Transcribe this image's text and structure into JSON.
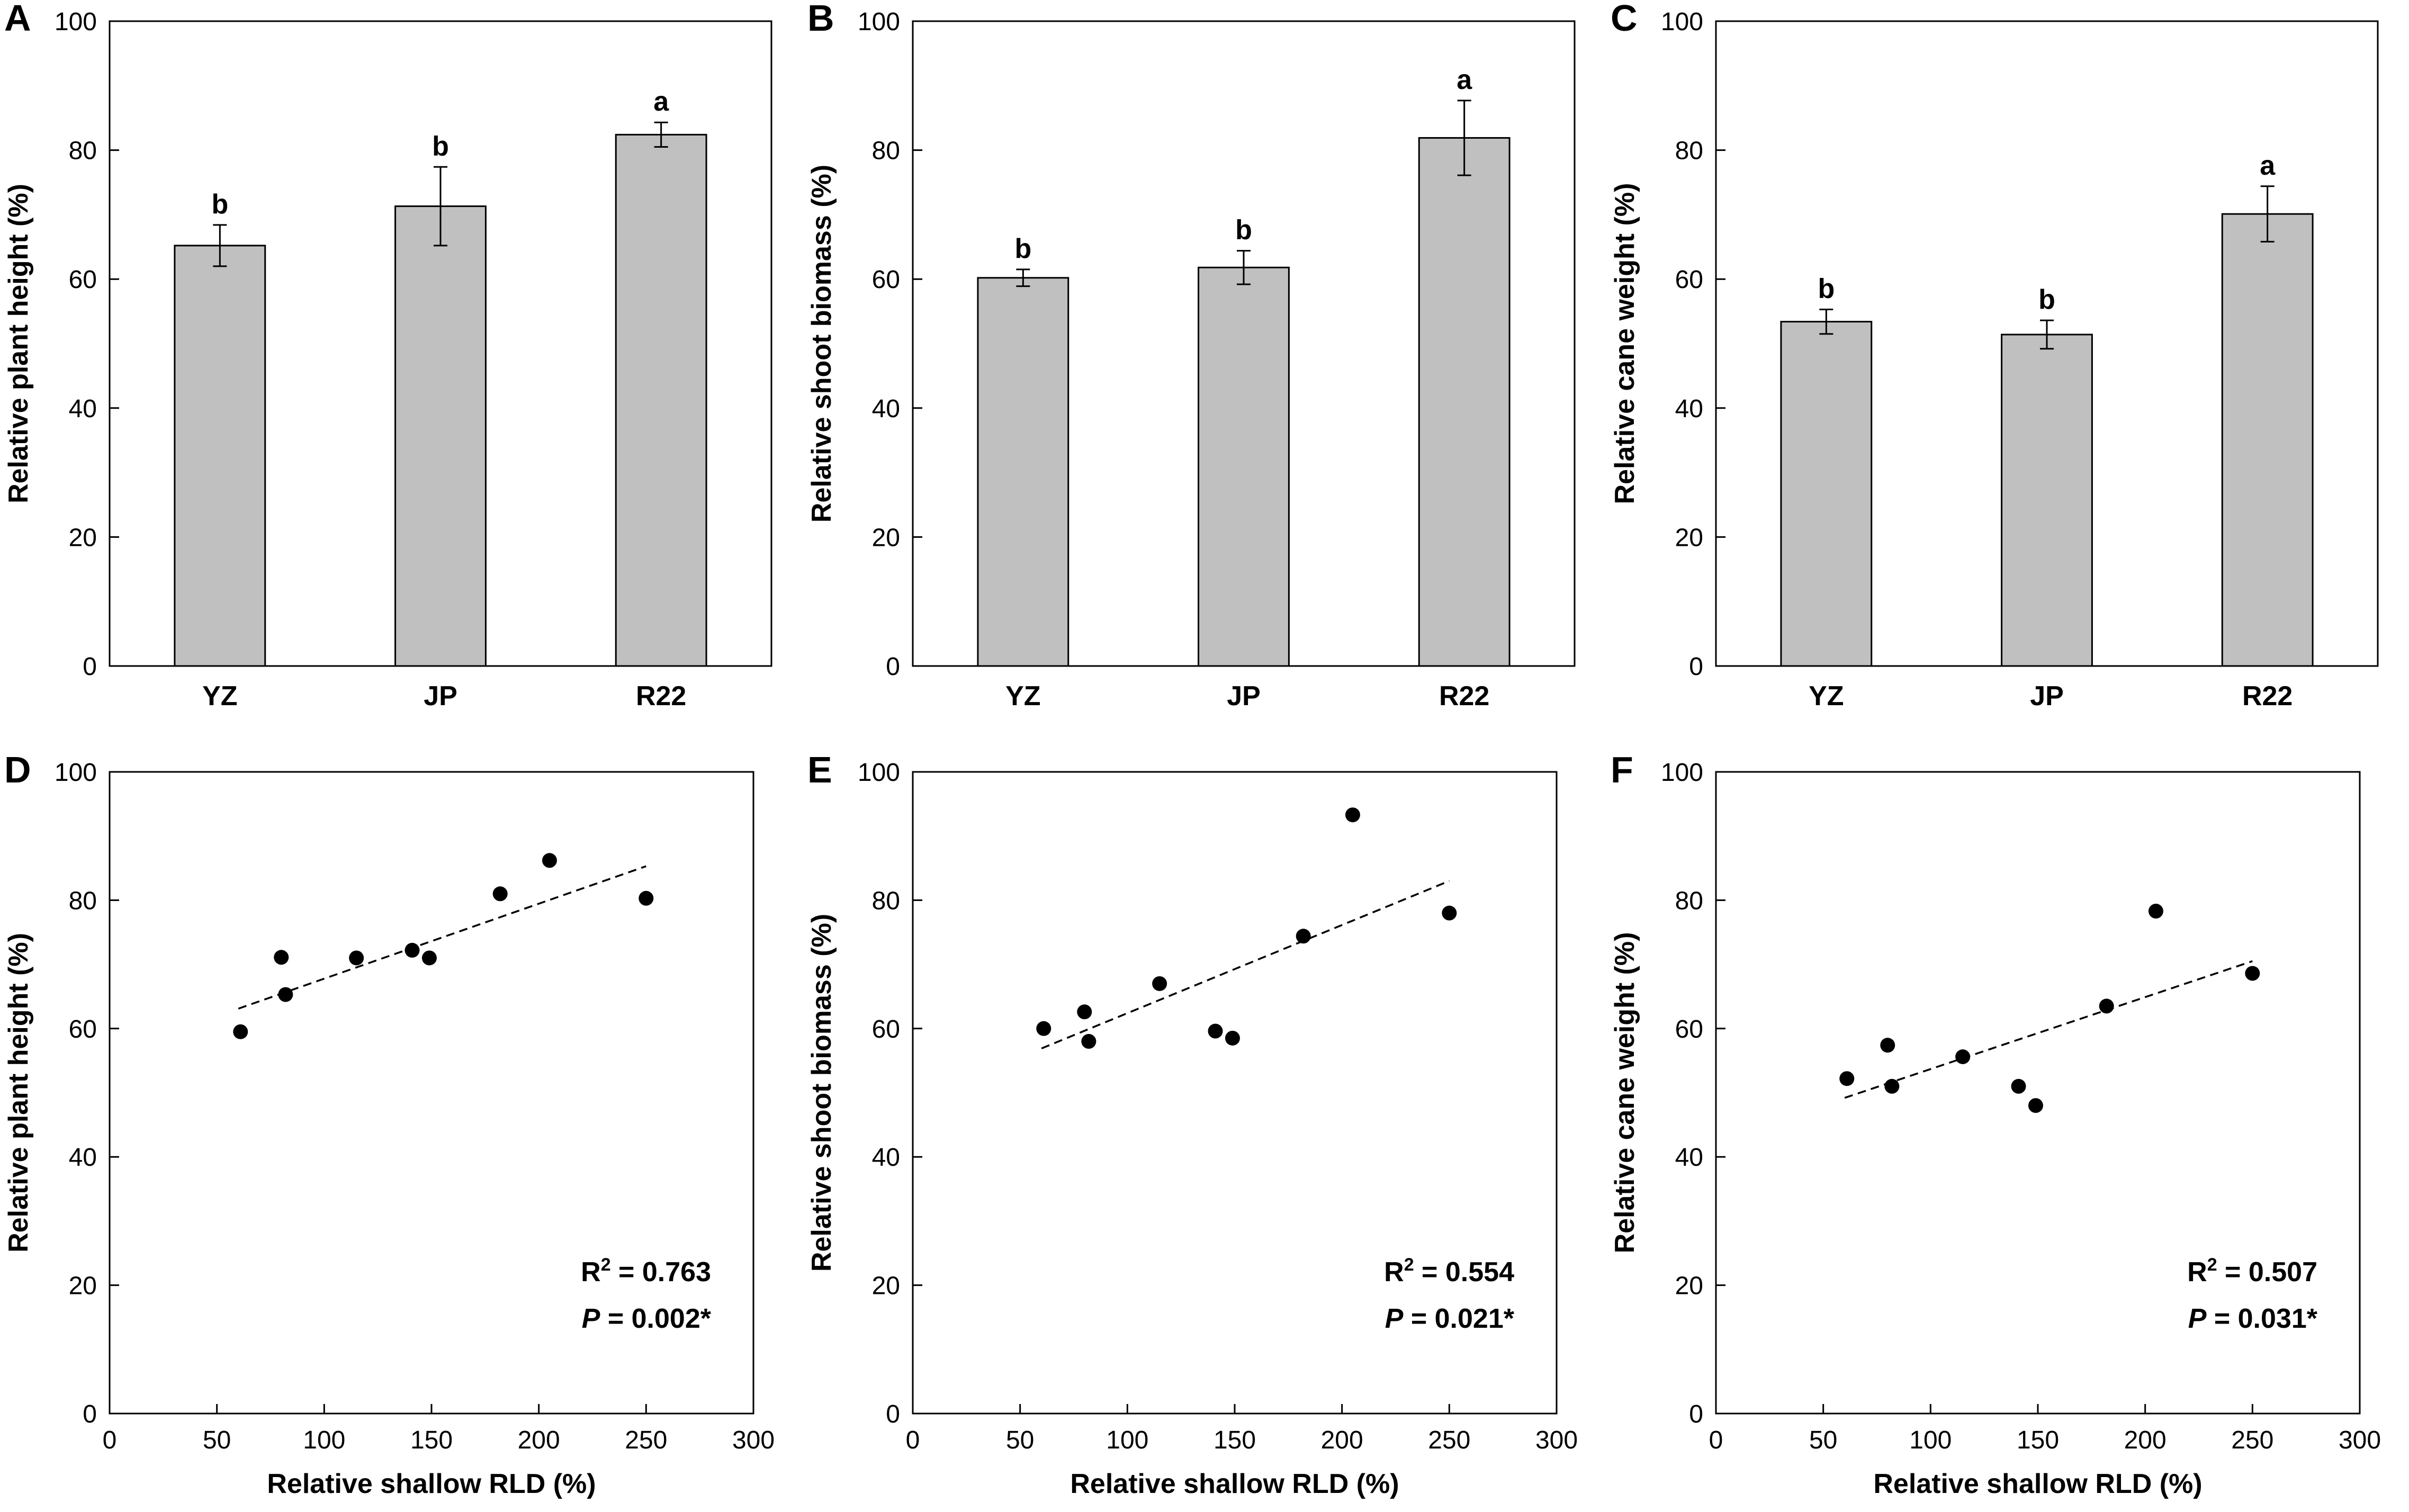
{
  "chart_data": [
    {
      "panel": "A",
      "type": "bar",
      "categories": [
        "YZ",
        "JP",
        "R22"
      ],
      "values": [
        65.2,
        71.3,
        82.4
      ],
      "errors": [
        3.2,
        6.1,
        1.9
      ],
      "significance": [
        "b",
        "b",
        "a"
      ],
      "xlabel": "",
      "ylabel": "Relative plant height (%)",
      "ylim": [
        0,
        100
      ],
      "yticks": [
        0,
        20,
        40,
        60,
        80,
        100
      ],
      "bar_color": "#c0c0c0"
    },
    {
      "panel": "B",
      "type": "bar",
      "categories": [
        "YZ",
        "JP",
        "R22"
      ],
      "values": [
        60.2,
        61.8,
        81.9
      ],
      "errors": [
        1.3,
        2.6,
        5.8
      ],
      "significance": [
        "b",
        "b",
        "a"
      ],
      "xlabel": "",
      "ylabel": "Relative shoot biomass (%)",
      "ylim": [
        0,
        100
      ],
      "yticks": [
        0,
        20,
        40,
        60,
        80,
        100
      ],
      "bar_color": "#c0c0c0"
    },
    {
      "panel": "C",
      "type": "bar",
      "categories": [
        "YZ",
        "JP",
        "R22"
      ],
      "values": [
        53.4,
        51.4,
        70.1
      ],
      "errors": [
        1.9,
        2.2,
        4.3
      ],
      "significance": [
        "b",
        "b",
        "a"
      ],
      "xlabel": "",
      "ylabel": "Relative cane weight (%)",
      "ylim": [
        0,
        100
      ],
      "yticks": [
        0,
        20,
        40,
        60,
        80,
        100
      ],
      "bar_color": "#c0c0c0"
    },
    {
      "panel": "D",
      "type": "scatter",
      "x": [
        61,
        80,
        82,
        115,
        141,
        149,
        182,
        205,
        250
      ],
      "y": [
        59.5,
        71.1,
        65.3,
        71.0,
        72.2,
        71.0,
        81.0,
        86.2,
        80.3
      ],
      "trendline": {
        "x": [
          60,
          250
        ],
        "y": [
          63.1,
          85.3
        ],
        "style": "dashed"
      },
      "r2_label": "R",
      "r2_sup": "2",
      "r2_value": " = 0.763",
      "p_label": "P",
      "p_value": " = 0.002*",
      "xlabel": "Relative shallow RLD (%)",
      "ylabel": "Relative plant height (%)",
      "xlim": [
        0,
        300
      ],
      "ylim": [
        0,
        100
      ],
      "xticks": [
        0,
        50,
        100,
        150,
        200,
        250,
        300
      ],
      "yticks": [
        0,
        20,
        40,
        60,
        80,
        100
      ]
    },
    {
      "panel": "E",
      "type": "scatter",
      "x": [
        61,
        80,
        82,
        115,
        141,
        149,
        182,
        205,
        250
      ],
      "y": [
        60.0,
        62.6,
        58.0,
        67.0,
        59.6,
        58.5,
        74.4,
        93.3,
        78.0
      ],
      "trendline": {
        "x": [
          60,
          250
        ],
        "y": [
          56.9,
          83.0
        ],
        "style": "dashed"
      },
      "r2_label": "R",
      "r2_sup": "2",
      "r2_value": " = 0.554",
      "p_label": "P",
      "p_value": " = 0.021*",
      "xlabel": "Relative shallow RLD (%)",
      "ylabel": "Relative shoot biomass (%)",
      "xlim": [
        0,
        300
      ],
      "ylim": [
        0,
        100
      ],
      "xticks": [
        0,
        50,
        100,
        150,
        200,
        250,
        300
      ],
      "yticks": [
        0,
        20,
        40,
        60,
        80,
        100
      ]
    },
    {
      "panel": "F",
      "type": "scatter",
      "x": [
        61,
        80,
        82,
        115,
        141,
        149,
        182,
        205,
        250
      ],
      "y": [
        52.2,
        57.4,
        51.0,
        55.6,
        51.0,
        48.0,
        63.5,
        78.3,
        68.6
      ],
      "trendline": {
        "x": [
          60,
          250
        ],
        "y": [
          49.2,
          70.5
        ],
        "style": "dashed"
      },
      "r2_label": "R",
      "r2_sup": "2",
      "r2_value": " = 0.507",
      "p_label": "P",
      "p_value": " = 0.031*",
      "xlabel": "Relative shallow RLD (%)",
      "ylabel": "Relative cane weight (%)",
      "xlim": [
        0,
        300
      ],
      "ylim": [
        0,
        100
      ],
      "xticks": [
        0,
        50,
        100,
        150,
        200,
        250,
        300
      ],
      "yticks": [
        0,
        20,
        40,
        60,
        80,
        100
      ]
    }
  ]
}
